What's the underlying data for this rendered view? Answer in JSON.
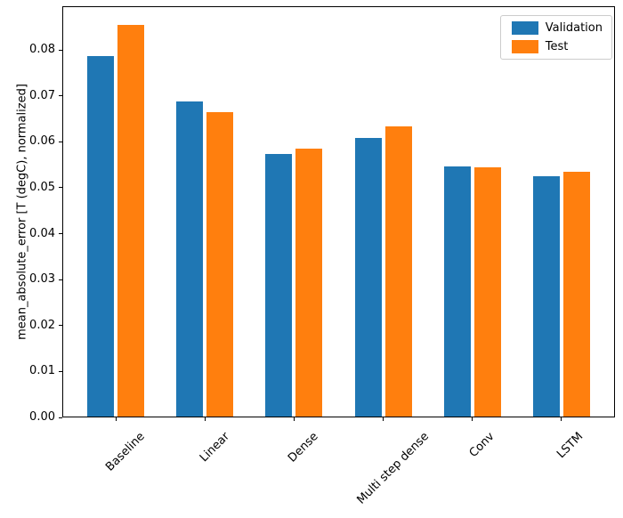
{
  "chart_data": {
    "type": "bar",
    "title": "",
    "xlabel": "",
    "ylabel": "mean_absolute_error [T (degC), normalized]",
    "categories": [
      "Baseline",
      "Linear",
      "Dense",
      "Multi step dense",
      "Conv",
      "LSTM"
    ],
    "series": [
      {
        "name": "Validation",
        "color": "#1f77b4",
        "values": [
          0.0785,
          0.0686,
          0.0572,
          0.0606,
          0.0544,
          0.0523
        ]
      },
      {
        "name": "Test",
        "color": "#ff7f0e",
        "values": [
          0.0852,
          0.0662,
          0.0583,
          0.0632,
          0.0542,
          0.0533
        ]
      }
    ],
    "ylim": [
      0,
      0.0895
    ],
    "xlim": [
      -0.6,
      5.6
    ],
    "yticks": [
      0,
      0.01,
      0.02,
      0.03,
      0.04,
      0.05,
      0.06,
      0.07,
      0.08
    ],
    "ytick_labels": [
      "0.00",
      "0.01",
      "0.02",
      "0.03",
      "0.04",
      "0.05",
      "0.06",
      "0.07",
      "0.08"
    ],
    "bar_width": 0.3,
    "bar_offset": 0.17,
    "xtick_rotation_deg": 45,
    "grid": false,
    "legend": {
      "position": "upper right",
      "entries": [
        "Validation",
        "Test"
      ],
      "border_color": "#cccccc"
    }
  }
}
